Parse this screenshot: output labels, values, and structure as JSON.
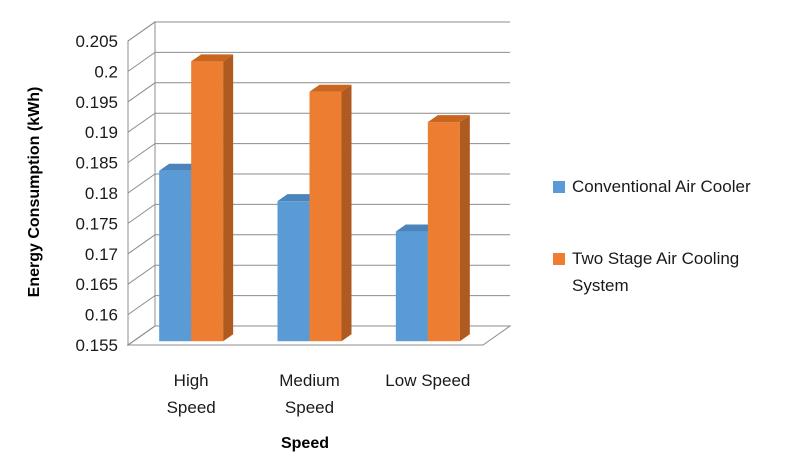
{
  "chart_data": {
    "type": "bar",
    "style": "3d-clustered-column",
    "categories": [
      "High Speed",
      "Medium Speed",
      "Low Speed"
    ],
    "category_lines": [
      [
        "High",
        "Speed"
      ],
      [
        "Medium",
        "Speed"
      ],
      [
        "Low Speed"
      ]
    ],
    "series": [
      {
        "name": "Conventional Air Cooler",
        "name_lines": [
          "Conventional Air Cooler"
        ],
        "values": [
          0.183,
          0.178,
          0.173
        ],
        "color": "#5b9bd5",
        "side_color": "#41719c",
        "top_color": "#4a84bb"
      },
      {
        "name": "Two Stage Air Cooling System",
        "name_lines": [
          "Two Stage Air Cooling",
          "System"
        ],
        "values": [
          0.201,
          0.196,
          0.191
        ],
        "color": "#ed7d31",
        "side_color": "#ae5a21",
        "top_color": "#c9651f"
      }
    ],
    "xlabel": "Speed",
    "ylabel": "Energy Consumption (kWh)",
    "ylim": [
      0.155,
      0.205
    ],
    "yticks": [
      "0.155",
      "0.16",
      "0.165",
      "0.17",
      "0.175",
      "0.18",
      "0.185",
      "0.19",
      "0.195",
      "0.2",
      "0.205"
    ],
    "grid": true,
    "legend_position": "right"
  }
}
